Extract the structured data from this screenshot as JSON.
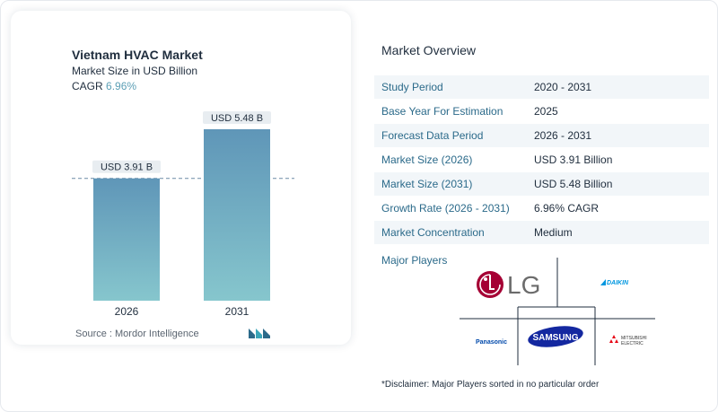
{
  "chart": {
    "title": "Vietnam HVAC Market",
    "subtitle": "Market Size in USD Billion",
    "cagr_label": "CAGR",
    "cagr_value": "6.96%",
    "source": "Source :  Mordor Intelligence"
  },
  "chart_data": {
    "type": "bar",
    "categories": [
      "2026",
      "2031"
    ],
    "values": [
      3.91,
      5.48
    ],
    "data_labels": [
      "USD 3.91 B",
      "USD 5.48 B"
    ],
    "title": "Vietnam HVAC Market",
    "subtitle": "Market Size in USD Billion",
    "xlabel": "",
    "ylabel": "",
    "ylim": [
      0,
      5.48
    ],
    "grid": false,
    "reference_line": 3.91,
    "colors": {
      "bar_top": "#5f96b8",
      "bar_bottom": "#86c6cd",
      "label_bg": "#e8edf1",
      "ref_line": "#6c8aa5"
    }
  },
  "overview": {
    "title": "Market Overview",
    "rows": [
      {
        "label": "Study Period",
        "value": "2020 - 2031"
      },
      {
        "label": "Base Year For Estimation",
        "value": "2025"
      },
      {
        "label": "Forecast Data Period",
        "value": "2026 - 2031"
      },
      {
        "label": "Market Size (2026)",
        "value": "USD 3.91 Billion"
      },
      {
        "label": "Market Size (2031)",
        "value": "USD 5.48 Billion"
      },
      {
        "label": "Growth Rate (2026 - 2031)",
        "value": "6.96% CAGR"
      },
      {
        "label": "Market Concentration",
        "value": "Medium"
      }
    ]
  },
  "players": {
    "title": "Major Players",
    "lg": "LG",
    "daikin": "DAIKIN",
    "panasonic": "Panasonic",
    "samsung": "SAMSUNG",
    "mitsubishi_line1": "MITSUBISHI",
    "mitsubishi_line2": "ELECTRIC"
  },
  "disclaimer": "*Disclaimer: Major Players sorted in no particular order",
  "colors": {
    "accent": "#2b6a8a",
    "lg_red": "#a50034",
    "samsung_blue": "#1428a0",
    "daikin_blue": "#0097e0",
    "panasonic_blue": "#0049ab",
    "mitsubishi_red": "#e60012"
  }
}
